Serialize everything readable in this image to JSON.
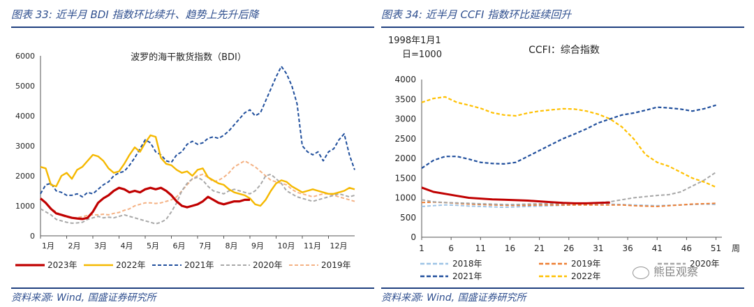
{
  "left": {
    "title": "图表 33:  近半月 BDI 指数环比续升、趋势上先升后降",
    "source": "资料来源:  Wind,  国盛证券研究所"
  },
  "right": {
    "title": "图表 34:  近半月 CCFI 指数环比延续回升",
    "source": "资料来源:  Wind,  国盛证券研究所",
    "watermark": "熊臣观察"
  },
  "chart_data": [
    {
      "type": "line",
      "title": "波罗的海干散货指数（BDI）",
      "ylim": [
        0,
        6000
      ],
      "yticks": [
        0,
        1000,
        2000,
        3000,
        4000,
        5000,
        6000
      ],
      "xlim": [
        1,
        13
      ],
      "xtick_labels": [
        "1月",
        "2月",
        "3月",
        "4月",
        "5月",
        "6月",
        "7月",
        "8月",
        "9月",
        "10月",
        "11月",
        "12月"
      ],
      "legend_position": "bottom",
      "series": [
        {
          "name": "2023年",
          "color": "#c00000",
          "style": "solid",
          "width": 3.2,
          "x": [
            1,
            1.2,
            1.4,
            1.6,
            1.8,
            2,
            2.2,
            2.4,
            2.6,
            2.8,
            3,
            3.2,
            3.4,
            3.6,
            3.8,
            4,
            4.2,
            4.4,
            4.6,
            4.8,
            5,
            5.2,
            5.4,
            5.6,
            5.8,
            6,
            6.2,
            6.4,
            6.6,
            6.8,
            7,
            7.2,
            7.4,
            7.6,
            7.8,
            8,
            8.2,
            8.4,
            8.6,
            8.8,
            9
          ],
          "y": [
            1250,
            1100,
            900,
            750,
            700,
            650,
            600,
            580,
            560,
            600,
            800,
            1100,
            1250,
            1350,
            1500,
            1600,
            1550,
            1450,
            1500,
            1450,
            1550,
            1600,
            1550,
            1600,
            1500,
            1350,
            1150,
            1000,
            950,
            1000,
            1050,
            1150,
            1300,
            1200,
            1100,
            1050,
            1100,
            1150,
            1150,
            1200,
            1200
          ]
        },
        {
          "name": "2022年",
          "color": "#f5b800",
          "style": "solid",
          "width": 2.4,
          "x": [
            1,
            1.2,
            1.4,
            1.6,
            1.8,
            2,
            2.2,
            2.4,
            2.6,
            2.8,
            3,
            3.2,
            3.4,
            3.6,
            3.8,
            4,
            4.2,
            4.4,
            4.6,
            4.8,
            5,
            5.2,
            5.4,
            5.6,
            5.8,
            6,
            6.2,
            6.4,
            6.6,
            6.8,
            7,
            7.2,
            7.4,
            7.6,
            7.8,
            8,
            8.2,
            8.4,
            8.6,
            8.8,
            9,
            9.2,
            9.4,
            9.6,
            9.8,
            10,
            10.2,
            10.4,
            10.6,
            10.8,
            11,
            11.2,
            11.4,
            11.6,
            11.8,
            12,
            12.2,
            12.4,
            12.6,
            12.8,
            13
          ],
          "y": [
            2300,
            2250,
            1700,
            1650,
            2000,
            2100,
            1900,
            2200,
            2300,
            2500,
            2700,
            2650,
            2500,
            2250,
            2100,
            2150,
            2400,
            2700,
            2950,
            2800,
            3100,
            3350,
            3300,
            2600,
            2400,
            2350,
            2200,
            2100,
            2150,
            2000,
            2200,
            2250,
            1950,
            1850,
            1750,
            1700,
            1550,
            1450,
            1400,
            1350,
            1250,
            1050,
            1000,
            1200,
            1500,
            1750,
            1850,
            1800,
            1650,
            1550,
            1450,
            1500,
            1550,
            1500,
            1450,
            1400,
            1400,
            1450,
            1500,
            1600,
            1550
          ]
        },
        {
          "name": "2021年",
          "color": "#1f4e9c",
          "style": "dash",
          "width": 2,
          "x": [
            1,
            1.2,
            1.4,
            1.6,
            1.8,
            2,
            2.2,
            2.4,
            2.6,
            2.8,
            3,
            3.2,
            3.4,
            3.6,
            3.8,
            4,
            4.2,
            4.4,
            4.6,
            4.8,
            5,
            5.2,
            5.4,
            5.6,
            5.8,
            6,
            6.2,
            6.4,
            6.6,
            6.8,
            7,
            7.2,
            7.4,
            7.6,
            7.8,
            8,
            8.2,
            8.4,
            8.6,
            8.8,
            9,
            9.2,
            9.4,
            9.6,
            9.8,
            10,
            10.2,
            10.4,
            10.6,
            10.8,
            11,
            11.2,
            11.4,
            11.6,
            11.8,
            12,
            12.2,
            12.4,
            12.6,
            12.8,
            13
          ],
          "y": [
            1400,
            1700,
            1750,
            1500,
            1450,
            1350,
            1350,
            1400,
            1300,
            1450,
            1400,
            1550,
            1700,
            1800,
            2000,
            2100,
            2150,
            2350,
            2600,
            2900,
            3200,
            3100,
            2800,
            2700,
            2500,
            2450,
            2700,
            2800,
            3050,
            3150,
            3050,
            3100,
            3250,
            3300,
            3250,
            3350,
            3500,
            3700,
            3900,
            4100,
            4200,
            4000,
            4100,
            4500,
            4900,
            5300,
            5650,
            5400,
            5000,
            4400,
            3000,
            2800,
            2700,
            2800,
            2500,
            2800,
            2900,
            3200,
            3400,
            2700,
            2200
          ]
        },
        {
          "name": "2020年",
          "color": "#a8a8a8",
          "style": "dash",
          "width": 2,
          "x": [
            1,
            1.2,
            1.4,
            1.6,
            1.8,
            2,
            2.2,
            2.4,
            2.6,
            2.8,
            3,
            3.2,
            3.4,
            3.6,
            3.8,
            4,
            4.2,
            4.4,
            4.6,
            4.8,
            5,
            5.2,
            5.4,
            5.6,
            5.8,
            6,
            6.2,
            6.4,
            6.6,
            6.8,
            7,
            7.2,
            7.4,
            7.6,
            7.8,
            8,
            8.2,
            8.4,
            8.6,
            8.8,
            9,
            9.2,
            9.4,
            9.6,
            9.8,
            10,
            10.2,
            10.4,
            10.6,
            10.8,
            11,
            11.2,
            11.4,
            11.6,
            11.8,
            12,
            12.2,
            12.4,
            12.6,
            12.8,
            13
          ],
          "y": [
            900,
            800,
            700,
            550,
            500,
            450,
            420,
            430,
            450,
            550,
            600,
            650,
            600,
            620,
            600,
            650,
            700,
            650,
            600,
            550,
            500,
            450,
            400,
            450,
            550,
            800,
            1100,
            1500,
            1750,
            1900,
            1950,
            1850,
            1650,
            1500,
            1450,
            1400,
            1500,
            1550,
            1500,
            1450,
            1400,
            1500,
            1700,
            2000,
            2050,
            1900,
            1750,
            1500,
            1400,
            1300,
            1250,
            1200,
            1150,
            1200,
            1250,
            1300,
            1350,
            1400,
            1350,
            1300,
            1350
          ]
        },
        {
          "name": "2019年",
          "color": "#f4b183",
          "style": "dash",
          "width": 2,
          "x": [
            1,
            1.2,
            1.4,
            1.6,
            1.8,
            2,
            2.2,
            2.4,
            2.6,
            2.8,
            3,
            3.2,
            3.4,
            3.6,
            3.8,
            4,
            4.2,
            4.4,
            4.6,
            4.8,
            5,
            5.2,
            5.4,
            5.6,
            5.8,
            6,
            6.2,
            6.4,
            6.6,
            6.8,
            7,
            7.2,
            7.4,
            7.6,
            7.8,
            8,
            8.2,
            8.4,
            8.6,
            8.8,
            9,
            9.2,
            9.4,
            9.6,
            9.8,
            10,
            10.2,
            10.4,
            10.6,
            10.8,
            11,
            11.2,
            11.4,
            11.6,
            11.8,
            12,
            12.2,
            12.4,
            12.6,
            12.8,
            13
          ],
          "y": [
            1250,
            1100,
            900,
            800,
            680,
            620,
            600,
            600,
            640,
            680,
            700,
            700,
            720,
            700,
            750,
            780,
            850,
            900,
            1000,
            1050,
            1100,
            1100,
            1080,
            1100,
            1150,
            1200,
            1300,
            1500,
            1700,
            1900,
            2000,
            2050,
            1950,
            1800,
            1850,
            1950,
            2100,
            2300,
            2400,
            2500,
            2400,
            2300,
            2150,
            2000,
            1850,
            1800,
            1750,
            1700,
            1550,
            1450,
            1400,
            1350,
            1300,
            1350,
            1400,
            1400,
            1350,
            1300,
            1250,
            1200,
            1150
          ]
        }
      ]
    },
    {
      "type": "line",
      "title": "CCFI：综合指数",
      "note_line1": "1998年1月1",
      "note_line2": "日=1000",
      "ylim": [
        0,
        4000
      ],
      "yticks": [
        0,
        500,
        1000,
        1500,
        2000,
        2500,
        3000,
        3500,
        4000
      ],
      "xlim": [
        1,
        52
      ],
      "xticks": [
        1,
        6,
        11,
        16,
        21,
        26,
        31,
        36,
        41,
        46,
        51
      ],
      "xunit": "周",
      "legend_position": "bottom",
      "series": [
        {
          "name": "2018年",
          "color": "#9dc3e6",
          "style": "dash",
          "width": 2,
          "x": [
            1,
            3,
            5,
            7,
            9,
            11,
            13,
            15,
            17,
            19,
            21,
            23,
            25,
            27,
            29,
            31,
            33,
            35,
            37,
            39,
            41,
            43,
            45,
            47,
            49,
            51
          ],
          "y": [
            780,
            800,
            820,
            810,
            790,
            780,
            770,
            760,
            770,
            780,
            790,
            800,
            810,
            820,
            830,
            840,
            840,
            830,
            820,
            810,
            800,
            810,
            820,
            830,
            840,
            830
          ]
        },
        {
          "name": "2019年",
          "color": "#ed7d31",
          "style": "dash",
          "width": 2,
          "x": [
            1,
            3,
            5,
            7,
            9,
            11,
            13,
            15,
            17,
            19,
            21,
            23,
            25,
            27,
            29,
            31,
            33,
            35,
            37,
            39,
            41,
            43,
            45,
            47,
            49,
            51
          ],
          "y": [
            880,
            890,
            880,
            860,
            840,
            830,
            820,
            810,
            810,
            810,
            820,
            820,
            820,
            820,
            820,
            820,
            820,
            820,
            800,
            790,
            780,
            800,
            820,
            840,
            850,
            860
          ]
        },
        {
          "name": "2020年",
          "color": "#a6a6a6",
          "style": "dash",
          "width": 2,
          "x": [
            1,
            3,
            5,
            7,
            9,
            11,
            13,
            15,
            17,
            19,
            21,
            23,
            25,
            27,
            29,
            31,
            33,
            35,
            37,
            39,
            41,
            43,
            45,
            47,
            49,
            51
          ],
          "y": [
            950,
            900,
            880,
            870,
            860,
            850,
            840,
            830,
            830,
            840,
            850,
            850,
            850,
            860,
            860,
            880,
            900,
            950,
            1000,
            1030,
            1060,
            1080,
            1150,
            1300,
            1450,
            1650
          ]
        },
        {
          "name": "2021年",
          "color": "#1f4e9c",
          "style": "dash",
          "width": 2.2,
          "x": [
            1,
            3,
            5,
            7,
            9,
            11,
            13,
            15,
            17,
            19,
            21,
            23,
            25,
            27,
            29,
            31,
            33,
            35,
            37,
            39,
            41,
            43,
            45,
            47,
            49,
            51
          ],
          "y": [
            1750,
            1950,
            2050,
            2050,
            1980,
            1900,
            1870,
            1860,
            1900,
            2050,
            2200,
            2350,
            2500,
            2620,
            2750,
            2900,
            3000,
            3100,
            3150,
            3220,
            3300,
            3280,
            3250,
            3200,
            3260,
            3350
          ]
        },
        {
          "name": "2022年",
          "color": "#ffc000",
          "style": "dash",
          "width": 2.2,
          "x": [
            1,
            3,
            5,
            7,
            9,
            11,
            13,
            15,
            17,
            19,
            21,
            23,
            25,
            27,
            29,
            31,
            33,
            35,
            37,
            39,
            41,
            43,
            45,
            47,
            49,
            51
          ],
          "y": [
            3420,
            3520,
            3560,
            3420,
            3350,
            3270,
            3160,
            3100,
            3080,
            3150,
            3200,
            3230,
            3260,
            3250,
            3200,
            3120,
            3000,
            2800,
            2500,
            2100,
            1900,
            1800,
            1650,
            1500,
            1400,
            1270
          ]
        },
        {
          "name": "",
          "color": "#c00000",
          "style": "solid",
          "width": 3,
          "x": [
            1,
            3,
            5,
            7,
            9,
            11,
            13,
            15,
            17,
            19,
            21,
            23,
            25,
            27,
            29,
            31,
            33
          ],
          "y": [
            1260,
            1150,
            1100,
            1050,
            1000,
            980,
            960,
            950,
            940,
            930,
            910,
            890,
            870,
            860,
            860,
            870,
            880
          ]
        }
      ]
    }
  ]
}
